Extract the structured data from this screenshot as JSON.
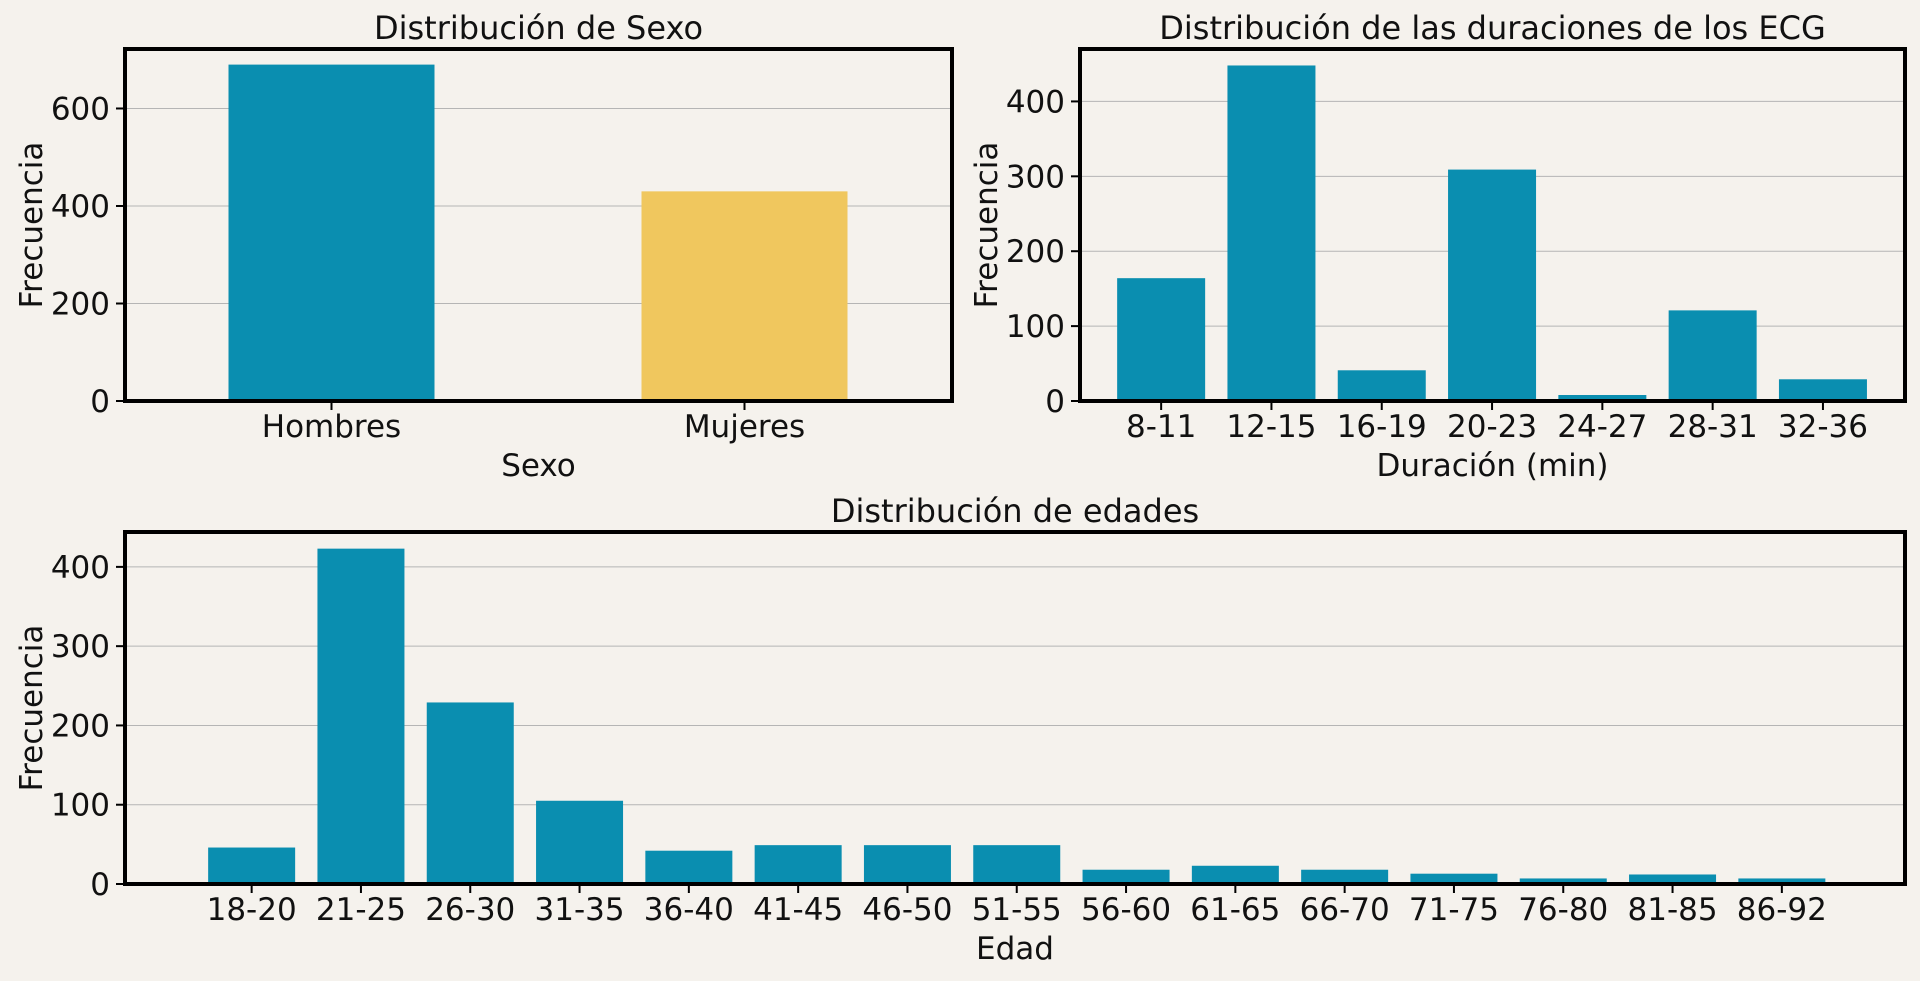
{
  "chart_data": [
    {
      "type": "bar",
      "title": "Distribución de Sexo",
      "xlabel": "Sexo",
      "ylabel": "Frecuencia",
      "categories": [
        "Hombres",
        "Mujeres"
      ],
      "values": [
        690,
        430
      ],
      "colors": [
        "#0a8eb0",
        "#f0c75e"
      ],
      "ylim": [
        0,
        722
      ],
      "yticks": [
        0,
        200,
        400,
        600
      ],
      "grid": "y"
    },
    {
      "type": "bar",
      "title": "Distribución de las duraciones de los ECG",
      "xlabel": "Duración (min)",
      "ylabel": "Frecuencia",
      "categories": [
        "8-11",
        "12-15",
        "16-19",
        "20-23",
        "24-27",
        "28-31",
        "32-36"
      ],
      "values": [
        164,
        448,
        41,
        309,
        8,
        121,
        29
      ],
      "colors": [
        "#0a8eb0"
      ],
      "ylim": [
        0,
        470
      ],
      "yticks": [
        0,
        100,
        200,
        300,
        400
      ],
      "grid": "y"
    },
    {
      "type": "bar",
      "title": "Distribución de edades",
      "xlabel": "Edad",
      "ylabel": "Frecuencia",
      "categories": [
        "18-20",
        "21-25",
        "26-30",
        "31-35",
        "36-40",
        "41-45",
        "46-50",
        "51-55",
        "56-60",
        "61-65",
        "66-70",
        "71-75",
        "76-80",
        "81-85",
        "86-92"
      ],
      "values": [
        46,
        423,
        229,
        105,
        42,
        49,
        49,
        49,
        18,
        23,
        18,
        13,
        7,
        12,
        7
      ],
      "colors": [
        "#0a8eb0"
      ],
      "ylim": [
        0,
        444
      ],
      "yticks": [
        0,
        100,
        200,
        300,
        400
      ],
      "grid": "y"
    }
  ]
}
